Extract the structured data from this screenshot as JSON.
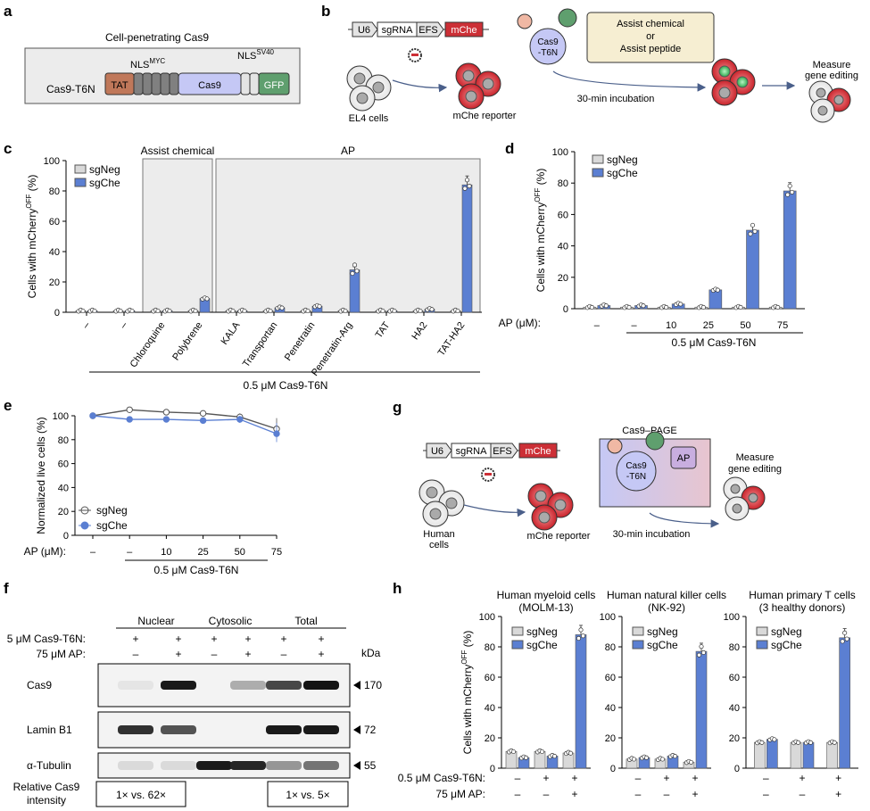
{
  "colors": {
    "sgNeg": "#d9d9d9",
    "sgChe": "#5b7fd2",
    "tat": "#c0785a",
    "nls": "#808080",
    "cas9": "#c5c8f5",
    "gfp": "#5f9f6e",
    "mche": "#cc2f36",
    "panelbg": "#ececec",
    "assist": "#f6eed2"
  },
  "panel_a": {
    "letter": "a",
    "title": "Cell-penetrating Cas9",
    "construct": "Cas9-T6N",
    "tat": "TAT",
    "cas9": "Cas9",
    "gfp": "GFP",
    "nls_myc": "NLS",
    "nls_myc_sup": "MYC",
    "nls_sv40": "NLS",
    "nls_sv40_sup": "SV40"
  },
  "panel_b": {
    "letter": "b",
    "u6": "U6",
    "sgrna": "sgRNA",
    "efs": "EFS",
    "mche": "mChe",
    "cells": "EL4 cells",
    "reporter": "mChe reporter",
    "cas9a": "Cas9",
    "cas9b": "-T6N",
    "assist1": "Assist chemical",
    "assist2": "or",
    "assist3": "Assist peptide",
    "incubation": "30-min incubation",
    "measure1": "Measure",
    "measure2": "gene editing"
  },
  "panel_g": {
    "letter": "g",
    "u6": "U6",
    "sgrna": "sgRNA",
    "efs": "EFS",
    "mche": "mChe",
    "cells1": "Human",
    "cells2": "cells",
    "reporter": "mChe reporter",
    "page": "Cas9–PAGE",
    "cas9a": "Cas9",
    "cas9b": "-T6N",
    "ap": "AP",
    "incubation": "30-min incubation",
    "measure1": "Measure",
    "measure2": "gene editing"
  },
  "legend": {
    "neg": "sgNeg",
    "che": "sgChe"
  },
  "chart_data": [
    {
      "panel": "c",
      "type": "bar",
      "ylabel": "Cells with mCherry",
      "ylabel_sup": "OFF",
      "ylabel_unit": " (%)",
      "ylim": [
        0,
        100
      ],
      "yticks": [
        0,
        20,
        40,
        60,
        80,
        100
      ],
      "groups": [
        "Assist chemical",
        "AP"
      ],
      "categories": [
        "–",
        "–",
        "Chloroquine",
        "Polybrene",
        "KALA",
        "Transportan",
        "Penetratin",
        "Penetratin-Arg",
        "TAT",
        "HA2",
        "TAT-HA2"
      ],
      "footer": "0.5 μM Cas9-T6N",
      "series": [
        {
          "name": "sgNeg",
          "values": [
            1,
            1,
            1,
            1,
            1,
            1,
            1,
            1,
            1,
            1,
            1
          ]
        },
        {
          "name": "sgChe",
          "values": [
            1,
            1,
            1,
            9,
            1,
            3,
            4,
            28,
            1,
            2,
            84
          ]
        }
      ]
    },
    {
      "panel": "d",
      "type": "bar",
      "ylabel": "Cells with mCherry",
      "ylabel_sup": "OFF",
      "ylabel_unit": " (%)",
      "ylim": [
        0,
        100
      ],
      "yticks": [
        0,
        20,
        40,
        60,
        80,
        100
      ],
      "row_label": "AP (μM):",
      "categories": [
        "–",
        "–",
        "10",
        "25",
        "50",
        "75"
      ],
      "footer": "0.5 μM Cas9-T6N",
      "series": [
        {
          "name": "sgNeg",
          "values": [
            1,
            1,
            1,
            1,
            1,
            1
          ]
        },
        {
          "name": "sgChe",
          "values": [
            2,
            2,
            3,
            12,
            50,
            75
          ]
        }
      ]
    },
    {
      "panel": "e",
      "type": "line",
      "ylabel": "Normalized live cells (%)",
      "ylim": [
        0,
        100
      ],
      "yticks": [
        0,
        20,
        40,
        60,
        80,
        100
      ],
      "row_label": "AP (μM):",
      "categories": [
        "–",
        "–",
        "10",
        "25",
        "50",
        "75"
      ],
      "footer": "0.5 μM Cas9-T6N",
      "series": [
        {
          "name": "sgNeg",
          "values": [
            100,
            105,
            103,
            102,
            99,
            89
          ]
        },
        {
          "name": "sgChe",
          "values": [
            100,
            97,
            97,
            96,
            97,
            85
          ]
        }
      ]
    },
    {
      "panel": "h1",
      "type": "bar",
      "title1": "Human myeloid cells",
      "title2": "(MOLM-13)",
      "ylabel": "Cells with mCherry",
      "ylabel_sup": "OFF",
      "ylabel_unit": " (%)",
      "ylim": [
        0,
        100
      ],
      "yticks": [
        0,
        20,
        40,
        60,
        80,
        100
      ],
      "series": [
        {
          "name": "sgNeg",
          "values": [
            11,
            11,
            10
          ]
        },
        {
          "name": "sgChe",
          "values": [
            7,
            8,
            88
          ]
        }
      ]
    },
    {
      "panel": "h2",
      "type": "bar",
      "title1": "Human natural killer cells",
      "title2": "(NK-92)",
      "ylim": [
        0,
        100
      ],
      "yticks": [
        0,
        20,
        40,
        60,
        80,
        100
      ],
      "series": [
        {
          "name": "sgNeg",
          "values": [
            6,
            6,
            4
          ]
        },
        {
          "name": "sgChe",
          "values": [
            7,
            8,
            77
          ]
        }
      ]
    },
    {
      "panel": "h3",
      "type": "bar",
      "title1": "Human primary T cells",
      "title2": "(3 healthy donors)",
      "ylim": [
        0,
        100
      ],
      "yticks": [
        0,
        20,
        40,
        60,
        80,
        100
      ],
      "series": [
        {
          "name": "sgNeg",
          "values": [
            17,
            17,
            17
          ]
        },
        {
          "name": "sgChe",
          "values": [
            19,
            17,
            86
          ]
        }
      ]
    }
  ],
  "panel_h": {
    "letter": "h",
    "row1": "0.5 μM Cas9-T6N:",
    "row2": "75 μM AP:",
    "row1_vals": [
      "–",
      "+",
      "+"
    ],
    "row2_vals": [
      "–",
      "–",
      "+"
    ]
  },
  "panel_f": {
    "letter": "f",
    "nuclear": "Nuclear",
    "cytosolic": "Cytosolic",
    "total": "Total",
    "row1": "5 μM Cas9-T6N:",
    "row2": "75 μM AP:",
    "row1_vals": [
      "+",
      "+",
      "+",
      "+",
      "+",
      "+"
    ],
    "row2_vals": [
      "–",
      "+",
      "–",
      "+",
      "–",
      "+"
    ],
    "kda": "kDa",
    "blots": [
      {
        "label": "Cas9",
        "kda": "170"
      },
      {
        "label": "Lamin B1",
        "kda": "72"
      },
      {
        "label": "α-Tubulin",
        "kda": "55"
      }
    ],
    "rel1": "Relative Cas9",
    "rel2": "intensity",
    "box1": "1×  vs.  62×",
    "box2": "1×  vs.  5×"
  },
  "letters": {
    "c": "c",
    "d": "d",
    "e": "e"
  }
}
